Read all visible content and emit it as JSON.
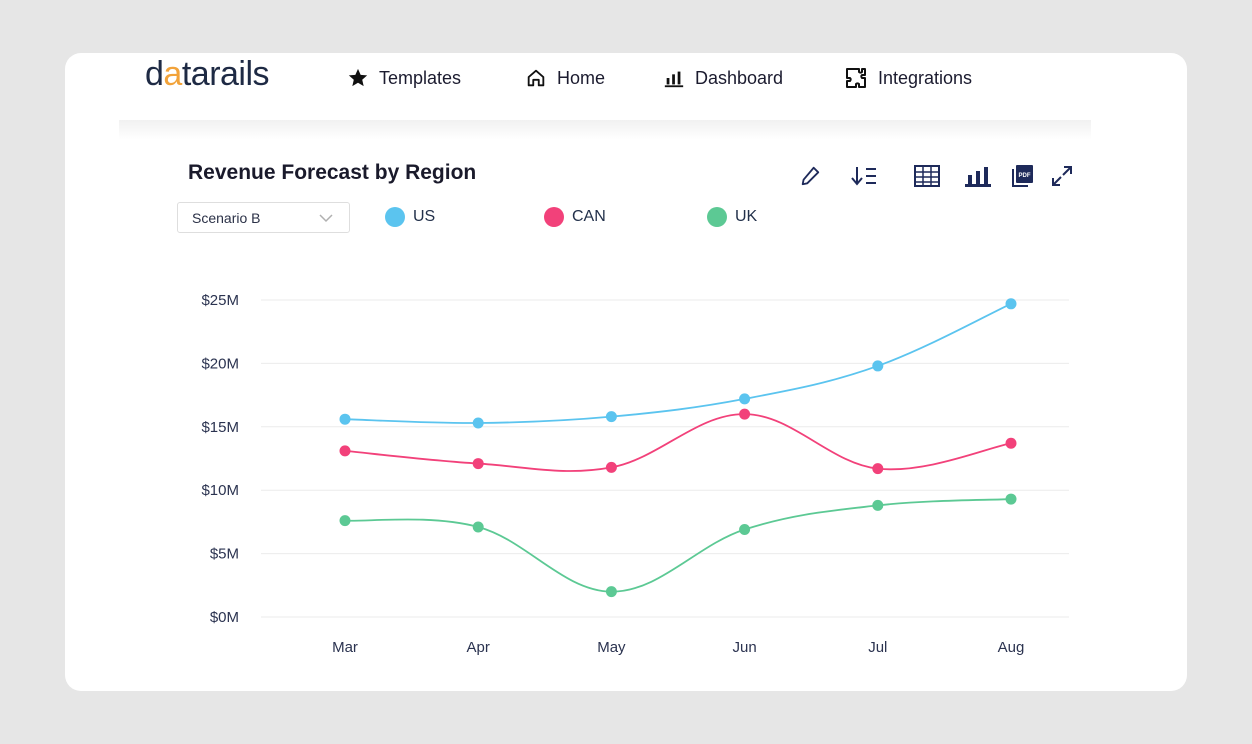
{
  "brand": {
    "logo_text_dark": "d",
    "logo_text_accent": "a",
    "logo_text_rest": "tarails"
  },
  "nav": {
    "items": [
      {
        "label": "Templates",
        "icon": "star-icon"
      },
      {
        "label": "Home",
        "icon": "home-icon"
      },
      {
        "label": "Dashboard",
        "icon": "bar-chart-icon"
      },
      {
        "label": "Integrations",
        "icon": "integrations-icon"
      }
    ]
  },
  "panel": {
    "title": "Revenue Forecast by Region",
    "scenario_select": {
      "value": "Scenario B"
    },
    "tools": [
      "edit-icon",
      "sort-icon",
      "table-icon",
      "bar-chart-icon",
      "pdf-icon",
      "expand-icon"
    ],
    "pdf_badge": "PDF"
  },
  "colors": {
    "US": "#5bc4ef",
    "CAN": "#f2417a",
    "UK": "#5cc994",
    "accent": "#f2a33a",
    "navy": "#1e2a5a"
  },
  "chart_data": {
    "type": "line",
    "categories": [
      "Mar",
      "Apr",
      "May",
      "Jun",
      "Jul",
      "Aug"
    ],
    "y_tick_labels": [
      "$0M",
      "$5M",
      "$10M",
      "$15M",
      "$20M",
      "$25M"
    ],
    "ylim": [
      0,
      25
    ],
    "grid": true,
    "legend_position": "top-left",
    "series": [
      {
        "name": "US",
        "values": [
          15.6,
          15.3,
          15.8,
          17.2,
          19.8,
          24.7
        ]
      },
      {
        "name": "CAN",
        "values": [
          13.1,
          12.1,
          11.8,
          16.0,
          11.7,
          13.7
        ]
      },
      {
        "name": "UK",
        "values": [
          7.6,
          7.1,
          2.0,
          6.9,
          8.8,
          9.3
        ]
      }
    ]
  }
}
